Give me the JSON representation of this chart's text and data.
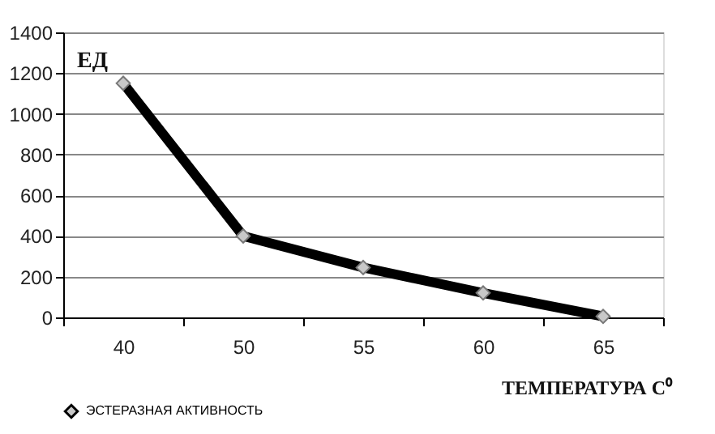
{
  "chart_data": {
    "type": "line",
    "categories": [
      "40",
      "50",
      "55",
      "60",
      "65"
    ],
    "series": [
      {
        "name": "ЭСТЕРАЗНАЯ  АКТИВНОСТЬ",
        "color": "#000000",
        "values": [
          1150,
          400,
          245,
          120,
          5
        ]
      }
    ],
    "ylabel": "ЕД",
    "xlabel": "ТЕМПЕРАТУРА  С⁰",
    "ylim": [
      0,
      1400
    ],
    "yticks": [
      0,
      200,
      400,
      600,
      800,
      1000,
      1200,
      1400
    ],
    "grid": "y",
    "legend": "bottom",
    "marker": "diamond",
    "line_style": "solid"
  }
}
